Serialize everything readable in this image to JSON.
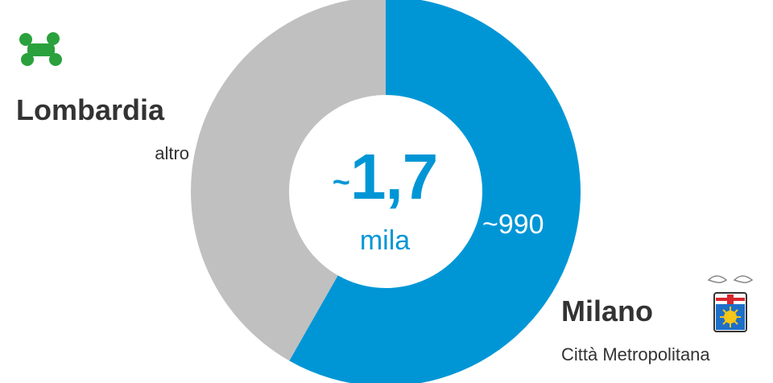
{
  "chart_data": {
    "type": "pie",
    "title": "",
    "total_label": {
      "approx": "~",
      "value": "1,7",
      "unit": "mila"
    },
    "slices": [
      {
        "label": "Città Metropolitana di Milano",
        "value": 990,
        "display": "~990",
        "color": "#0096d6"
      },
      {
        "label": "altro",
        "value": 710,
        "color": "#c0c0c0"
      }
    ]
  },
  "legend": {
    "region": {
      "title": "Lombardia",
      "subtitle": "altro",
      "logo_icon": "lombardia-rose-icon",
      "logo_color": "#2aa13c"
    },
    "city": {
      "title": "Milano",
      "subtitle": "Città Metropolitana",
      "crest_icon": "milano-crest-icon"
    }
  }
}
